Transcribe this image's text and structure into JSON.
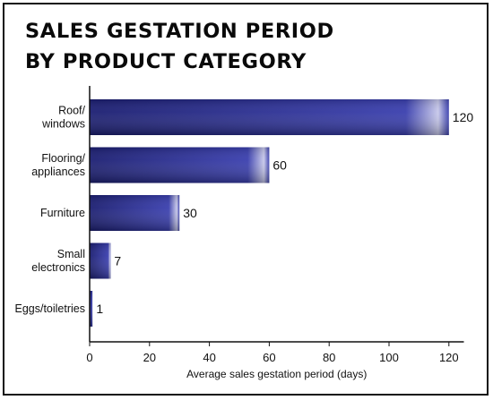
{
  "chart_data": {
    "type": "bar",
    "orientation": "horizontal",
    "title_lines": [
      "SALES GESTATION PERIOD",
      "BY PRODUCT CATEGORY"
    ],
    "categories": [
      [
        "Roof/",
        "windows"
      ],
      [
        "Flooring/",
        "appliances"
      ],
      [
        "Furniture"
      ],
      [
        "Small",
        "electronics"
      ],
      [
        "Eggs/toiletries"
      ]
    ],
    "values": [
      120,
      60,
      30,
      7,
      1
    ],
    "value_labels": [
      "120",
      "60",
      "30",
      "7",
      "1"
    ],
    "xlabel": "Average sales gestation period (days)",
    "xlim": [
      0,
      125
    ],
    "xticks": [
      0,
      20,
      40,
      60,
      80,
      100,
      120
    ],
    "grid": false,
    "bar_color_dark": "#1c1f73",
    "bar_color_mid": "#3a3fae",
    "bar_color_light": "#c7c8ea"
  }
}
